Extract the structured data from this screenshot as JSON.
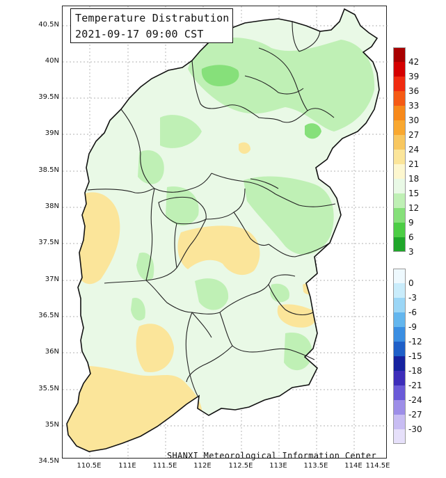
{
  "title": {
    "line1": "Temperature Distrabution",
    "line2": "2021-09-17 09:00 CST"
  },
  "credit": "SHANXI Meteorological Information Center",
  "latitude_labels": [
    "40.5N",
    "40N",
    "39.5N",
    "39N",
    "38.5N",
    "38N",
    "37.5N",
    "37N",
    "36.5N",
    "36N",
    "35.5N",
    "35N",
    "34.5N"
  ],
  "longitude_labels": [
    "110.5E",
    "111E",
    "111.5E",
    "112E",
    "112.5E",
    "113E",
    "113.5E",
    "114E",
    "114.5E"
  ],
  "legend_warm": [
    {
      "label": "42",
      "color": "#a80000"
    },
    {
      "label": "39",
      "color": "#d40000"
    },
    {
      "label": "36",
      "color": "#f02b10"
    },
    {
      "label": "33",
      "color": "#f55a14"
    },
    {
      "label": "30",
      "color": "#f7891a"
    },
    {
      "label": "27",
      "color": "#f9a830"
    },
    {
      "label": "24",
      "color": "#f8c760"
    },
    {
      "label": "21",
      "color": "#fbe59a"
    },
    {
      "label": "18",
      "color": "#fdf7cf"
    },
    {
      "label": "15",
      "color": "#e9f9e6"
    },
    {
      "label": "12",
      "color": "#bff0b5"
    },
    {
      "label": "9",
      "color": "#86e07a"
    },
    {
      "label": "6",
      "color": "#4ccd45"
    },
    {
      "label": "3",
      "color": "#1fa62a"
    }
  ],
  "legend_cold": [
    {
      "label": "0",
      "color": "#eef9fe"
    },
    {
      "label": "-3",
      "color": "#c9ecfb"
    },
    {
      "label": "-6",
      "color": "#9bd6f6"
    },
    {
      "label": "-9",
      "color": "#63b6ee"
    },
    {
      "label": "-12",
      "color": "#3a8ee2"
    },
    {
      "label": "-15",
      "color": "#1e5fc8"
    },
    {
      "label": "-18",
      "color": "#16229f"
    },
    {
      "label": "-21",
      "color": "#3d2dba"
    },
    {
      "label": "-24",
      "color": "#6a5ad8"
    },
    {
      "label": "-27",
      "color": "#9d8ee8"
    },
    {
      "label": "-30",
      "color": "#c8bdf3"
    },
    {
      "label": "",
      "color": "#e6e0fa"
    }
  ]
}
